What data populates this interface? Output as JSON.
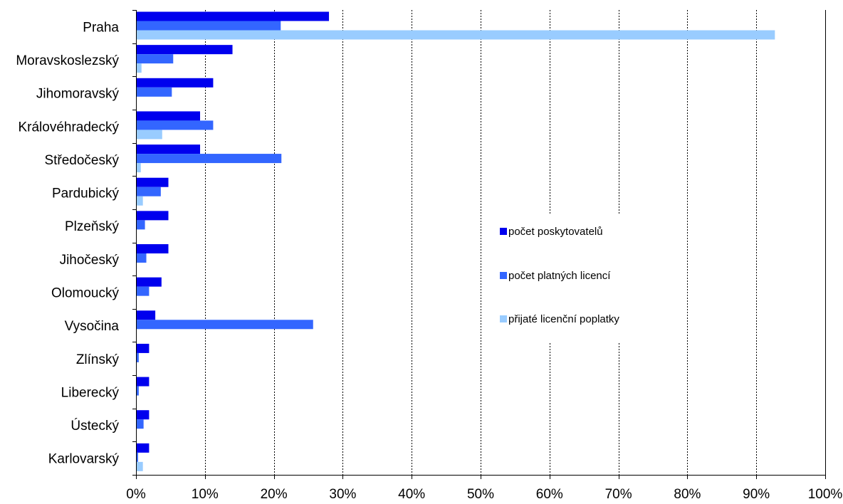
{
  "chart_data": {
    "type": "bar",
    "orientation": "horizontal",
    "categories": [
      "Praha",
      "Moravskoslezský",
      "Jihomoravský",
      "Královéhradecký",
      "Středočeský",
      "Pardubický",
      "Plzeňský",
      "Jihočeský",
      "Olomoucký",
      "Vysočina",
      "Zlínský",
      "Liberecký",
      "Ústecký",
      "Karlovarský"
    ],
    "series": [
      {
        "name": "počet poskytovatelů",
        "color": "#0000ee",
        "values": [
          28.0,
          14.0,
          11.2,
          9.3,
          9.3,
          4.7,
          4.7,
          4.7,
          3.7,
          2.8,
          1.9,
          1.9,
          1.9,
          1.9
        ]
      },
      {
        "name": "počet platných licencí",
        "color": "#3366ff",
        "values": [
          21.0,
          5.4,
          5.2,
          11.2,
          21.1,
          3.6,
          1.3,
          1.5,
          1.9,
          25.7,
          0.4,
          0.4,
          1.1,
          0.3
        ]
      },
      {
        "name": "přijaté licenční poplatky",
        "color": "#99ccff",
        "values": [
          92.7,
          0.8,
          0,
          3.8,
          0.7,
          1.0,
          0,
          0,
          0,
          0,
          0,
          0,
          0,
          1.0
        ]
      }
    ],
    "x_ticks": [
      "0%",
      "10%",
      "20%",
      "30%",
      "40%",
      "50%",
      "60%",
      "70%",
      "80%",
      "90%",
      "100%"
    ],
    "xlim": [
      0,
      100
    ],
    "grid": "vertical dashed",
    "legend_position": "center-right"
  }
}
